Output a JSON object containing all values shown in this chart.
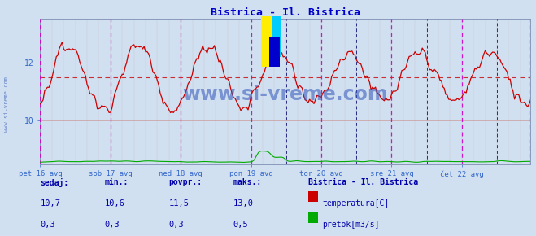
{
  "title": "Bistrica - Il. Bistrica",
  "title_color": "#0000cc",
  "bg_color": "#d0e0f0",
  "border_color": "#8888aa",
  "x_labels": [
    "pet 16 avg",
    "sob 17 avg",
    "ned 18 avg",
    "pon 19 avg",
    "tor 20 avg",
    "sre 21 avg",
    "čet 22 avg"
  ],
  "x_tick_positions": [
    0,
    48,
    96,
    144,
    192,
    240,
    288
  ],
  "total_points": 336,
  "y_min": 8.5,
  "y_max": 13.5,
  "y_ticks": [
    10,
    12
  ],
  "y_label_color": "#3366cc",
  "temp_color": "#cc0000",
  "flow_color": "#00aa00",
  "avg_value": 11.5,
  "grid_h_color": "#cc9999",
  "grid_v_color": "#ccbbbb",
  "magenta_vline_color": "#cc00cc",
  "darkblue_vline_color": "#000066",
  "watermark_text": "www.si-vreme.com",
  "watermark_color": "#3355bb",
  "sidebar_text": "www.si-vreme.com",
  "sidebar_color": "#4466bb",
  "footer_color": "#0000aa",
  "sedaj_label": "sedaj:",
  "min_label": "min.:",
  "povpr_label": "povpr.:",
  "maks_label": "maks.:",
  "station_label": "Bistrica - Il. Bistrica",
  "temp_sedaj": "10,7",
  "temp_min": "10,6",
  "temp_povpr": "11,5",
  "temp_maks": "13,0",
  "flow_sedaj": "0,3",
  "flow_min": "0,3",
  "flow_povpr": "0,3",
  "flow_maks": "0,5",
  "legend_temp": "temperatura[C]",
  "legend_flow": "pretok[m3/s]",
  "logo_yellow": "#ffee00",
  "logo_cyan": "#00ccff",
  "logo_blue": "#0000cc"
}
